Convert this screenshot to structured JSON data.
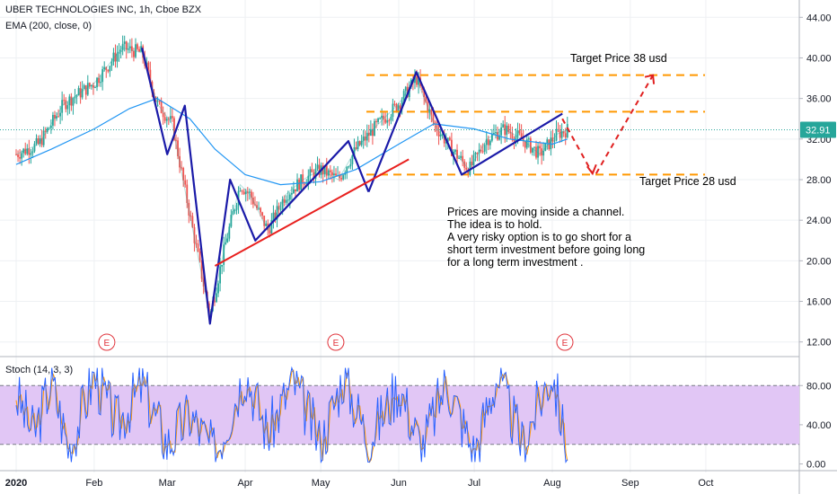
{
  "header": {
    "title": "UBER TECHNOLOGIES INC, 1h, Cboe BZX",
    "indicator": "EMA (200, close, 0)",
    "oscillator": "Stoch (14, 3, 3)"
  },
  "price_label": "32.91",
  "annotations": {
    "target_high": "Target Price 38 usd",
    "target_low": "Target Price 28 usd",
    "note_lines": [
      "Prices are moving inside a channel.",
      "The idea is to hold.",
      "A very risky option is to go short for a",
      "short term investment before going long",
      "for a long term investment ."
    ]
  },
  "earnings_marker": "E",
  "colors": {
    "price_line": "#26a69a",
    "ema": "#2196f3",
    "zigzag": "#1a1aa8",
    "trendline": "#e8201e",
    "channel": "#ff9800",
    "projection": "#e02020",
    "stoch_band": "#e1c6f5",
    "up_candle": "#26a69a",
    "down_candle": "#ef5350",
    "marker": "#e0323a"
  },
  "chart_data": [
    {
      "type": "line",
      "panel": "price",
      "ylim": [
        11,
        45
      ],
      "y_ticks": [
        "12.00",
        "16.00",
        "20.00",
        "24.00",
        "28.00",
        "32.00",
        "36.00",
        "40.00",
        "44.00"
      ],
      "x_ticks": [
        "2020",
        "Feb",
        "Mar",
        "Apr",
        "May",
        "Jun",
        "Jul",
        "Aug",
        "Sep",
        "Oct"
      ],
      "last_price": 32.91,
      "series": [
        {
          "x": [
            "2020-01-01",
            "2020-01-10",
            "2020-01-20",
            "2020-02-01",
            "2020-02-12",
            "2020-02-20",
            "2020-02-26",
            "2020-03-03",
            "2020-03-10",
            "2020-03-16",
            "2020-03-18",
            "2020-03-24",
            "2020-03-30",
            "2020-04-03",
            "2020-04-10",
            "2020-04-17",
            "2020-04-24",
            "2020-05-01",
            "2020-05-08",
            "2020-05-15",
            "2020-05-22",
            "2020-06-01",
            "2020-06-08",
            "2020-06-15",
            "2020-06-22",
            "2020-06-29",
            "2020-07-06",
            "2020-07-13",
            "2020-07-20",
            "2020-07-27",
            "2020-08-03",
            "2020-08-07"
          ],
          "values": [
            30.5,
            31.5,
            35.5,
            37.5,
            41.0,
            40.5,
            35.5,
            33.5,
            24.5,
            17.0,
            14.5,
            21.5,
            27.5,
            26.5,
            23.0,
            26.5,
            28.0,
            29.0,
            28.0,
            31.0,
            33.0,
            35.5,
            38.0,
            33.5,
            31.0,
            29.0,
            32.0,
            33.0,
            32.0,
            30.5,
            32.5,
            32.91
          ]
        },
        {
          "x": [
            "2020-01-01",
            "2020-01-15",
            "2020-02-01",
            "2020-02-15",
            "2020-02-26",
            "2020-03-10",
            "2020-03-20",
            "2020-04-01",
            "2020-04-15",
            "2020-05-01",
            "2020-05-15",
            "2020-06-01",
            "2020-06-15",
            "2020-07-01",
            "2020-07-15",
            "2020-08-01",
            "2020-08-07"
          ],
          "values": [
            29.5,
            31.0,
            33.0,
            35.0,
            36.0,
            34.0,
            31.0,
            28.5,
            27.5,
            27.8,
            29.0,
            31.5,
            33.5,
            33.0,
            32.0,
            31.5,
            32.0
          ]
        }
      ]
    },
    {
      "type": "line",
      "panel": "stochastic",
      "ylim": [
        -5,
        105
      ],
      "y_ticks": [
        "0.00",
        "40.00",
        "80.00"
      ],
      "band": [
        20,
        80
      ],
      "series": [
        {
          "x": [
            "2020-01-01",
            "2020-01-08",
            "2020-01-15",
            "2020-01-22",
            "2020-02-01",
            "2020-02-10",
            "2020-02-20",
            "2020-03-01",
            "2020-03-10",
            "2020-03-20",
            "2020-04-01",
            "2020-04-10",
            "2020-04-20",
            "2020-05-01",
            "2020-05-10",
            "2020-05-20",
            "2020-06-01",
            "2020-06-10",
            "2020-06-20",
            "2020-07-01",
            "2020-07-10",
            "2020-07-20",
            "2020-08-01",
            "2020-08-07"
          ],
          "values": [
            70,
            30,
            85,
            15,
            90,
            40,
            80,
            20,
            50,
            10,
            95,
            30,
            85,
            20,
            90,
            25,
            80,
            15,
            85,
            10,
            90,
            20,
            95,
            10
          ]
        }
      ]
    }
  ]
}
